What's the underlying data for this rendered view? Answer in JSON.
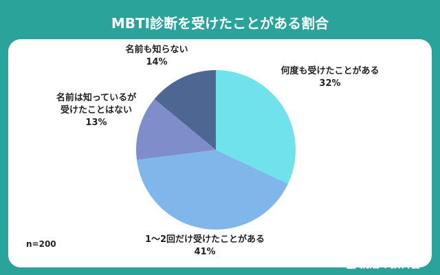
{
  "chart_data": {
    "type": "pie",
    "title": "MBTI診断を受けたことがある割合",
    "categories": [
      "何度も受けたことがある",
      "1～2回だけ受けたことがある",
      "名前は知っているが\n受けたことはない",
      "名前も知らない"
    ],
    "values": [
      32,
      41,
      13,
      14
    ],
    "value_labels": [
      "32%",
      "41%",
      "13%",
      "14%"
    ],
    "colors": [
      "#6fe2ec",
      "#80b6ea",
      "#7f8dcb",
      "#4e6792"
    ],
    "note": "n=200",
    "source": "就活の教科書"
  }
}
